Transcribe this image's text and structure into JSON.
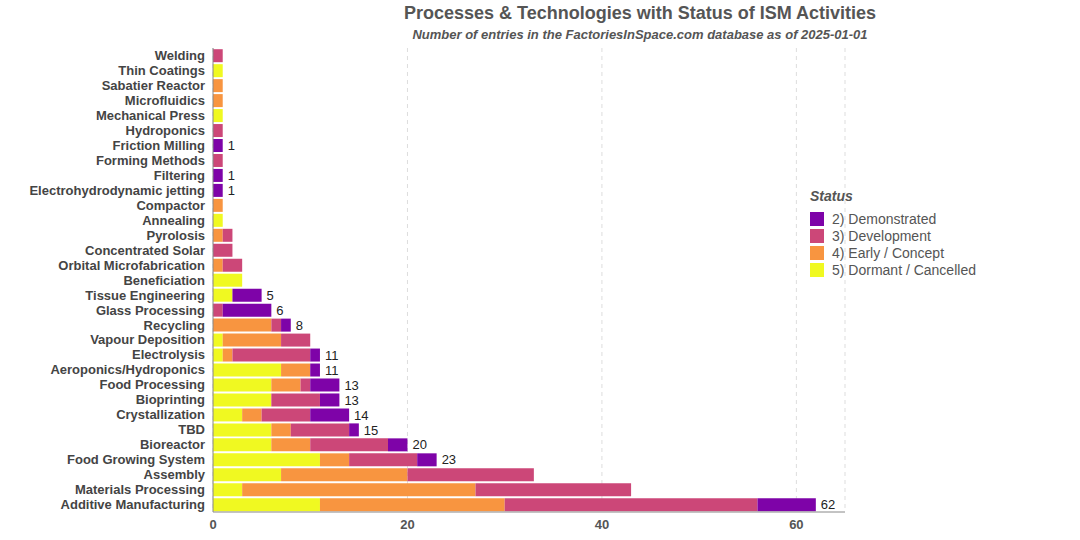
{
  "chart_data": {
    "type": "bar",
    "title": "Processes & Technologies with Status of ISM Activities",
    "subtitle": "Number of entries in the FactoriesInSpace.com database as of 2025-01-01",
    "legend_title": "Status",
    "orientation": "horizontal",
    "stacked": true,
    "grid": true,
    "legend": "right",
    "xlim": [
      0,
      65
    ],
    "xticks": [
      0,
      20,
      40,
      60
    ],
    "categories": [
      "Welding",
      "Thin Coatings",
      "Sabatier Reactor",
      "Microfluidics",
      "Mechanical Press",
      "Hydroponics",
      "Friction Milling",
      "Forming Methods",
      "Filtering",
      "Electrohydrodynamic jetting",
      "Compactor",
      "Annealing",
      "Pyrolosis",
      "Concentrated Solar",
      "Orbital Microfabrication",
      "Beneficiation",
      "Tissue Engineering",
      "Glass Processing",
      "Recycling",
      "Vapour Deposition",
      "Electrolysis",
      "Aeroponics/Hydroponics",
      "Food Processing",
      "Bioprinting",
      "Crystallization",
      "TBD",
      "Bioreactor",
      "Food Growing System",
      "Assembly",
      "Materials Processing",
      "Additive Manufacturing"
    ],
    "series": [
      {
        "name": "2) Demonstrated",
        "color": "#7e03a8",
        "values": [
          0,
          0,
          0,
          0,
          0,
          0,
          1,
          0,
          1,
          1,
          0,
          0,
          0,
          0,
          0,
          0,
          3,
          5,
          1,
          0,
          1,
          1,
          3,
          2,
          4,
          1,
          2,
          2,
          0,
          0,
          6
        ]
      },
      {
        "name": "3) Development",
        "color": "#cc4778",
        "values": [
          1,
          0,
          0,
          0,
          0,
          1,
          0,
          1,
          0,
          0,
          0,
          0,
          1,
          2,
          2,
          0,
          0,
          1,
          1,
          3,
          8,
          0,
          1,
          5,
          5,
          6,
          8,
          7,
          13,
          16,
          26
        ]
      },
      {
        "name": "4) Early / Concept",
        "color": "#f89540",
        "values": [
          0,
          0,
          1,
          1,
          0,
          0,
          0,
          0,
          0,
          0,
          1,
          0,
          1,
          0,
          1,
          0,
          0,
          0,
          6,
          6,
          1,
          3,
          3,
          0,
          2,
          2,
          4,
          3,
          13,
          24,
          19
        ]
      },
      {
        "name": "5) Dormant / Cancelled",
        "color": "#f0f921",
        "values": [
          0,
          1,
          0,
          0,
          1,
          0,
          0,
          0,
          0,
          0,
          0,
          1,
          0,
          0,
          0,
          3,
          2,
          0,
          0,
          1,
          1,
          7,
          6,
          6,
          3,
          6,
          6,
          11,
          7,
          3,
          11
        ]
      }
    ],
    "totals": [
      1,
      1,
      1,
      1,
      1,
      1,
      1,
      1,
      1,
      1,
      1,
      1,
      2,
      2,
      3,
      3,
      5,
      6,
      8,
      10,
      11,
      11,
      13,
      13,
      14,
      15,
      20,
      23,
      33,
      43,
      62
    ]
  }
}
